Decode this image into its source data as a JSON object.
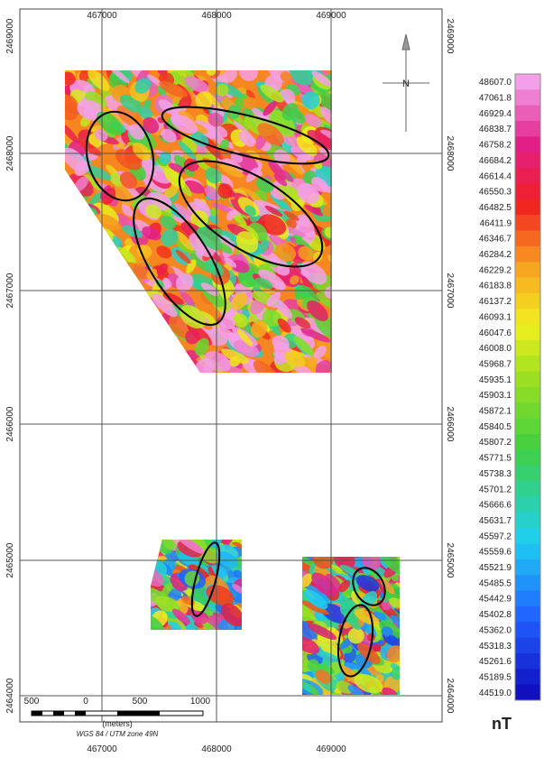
{
  "map": {
    "x_labels": [
      "467000",
      "468000",
      "469000"
    ],
    "y_labels": [
      "2469000",
      "2468000",
      "2467000",
      "2466000",
      "2465000",
      "2464000"
    ],
    "north": "N",
    "scale_bar": {
      "labels": [
        "500",
        "0",
        "500",
        "1000"
      ],
      "unit": "(meters)",
      "projection": "WGS 84 / UTM zone 49N"
    }
  },
  "colorbar": {
    "labels": [
      "48607.0",
      "47061.8",
      "46929.4",
      "46838.7",
      "46758.2",
      "46684.2",
      "46614.4",
      "46550.3",
      "46482.5",
      "46411.9",
      "46346.7",
      "46284.2",
      "46229.2",
      "46183.8",
      "46137.2",
      "46093.1",
      "46047.6",
      "46008.0",
      "45968.7",
      "45935.1",
      "45903.1",
      "45872.1",
      "45840.5",
      "45807.2",
      "45771.5",
      "45738.3",
      "45701.2",
      "45666.6",
      "45631.7",
      "45597.2",
      "45559.6",
      "45521.9",
      "45485.5",
      "45442.9",
      "45402.8",
      "45362.0",
      "45318.3",
      "45261.6",
      "45189.5",
      "44519.0"
    ],
    "unit": "nT"
  }
}
